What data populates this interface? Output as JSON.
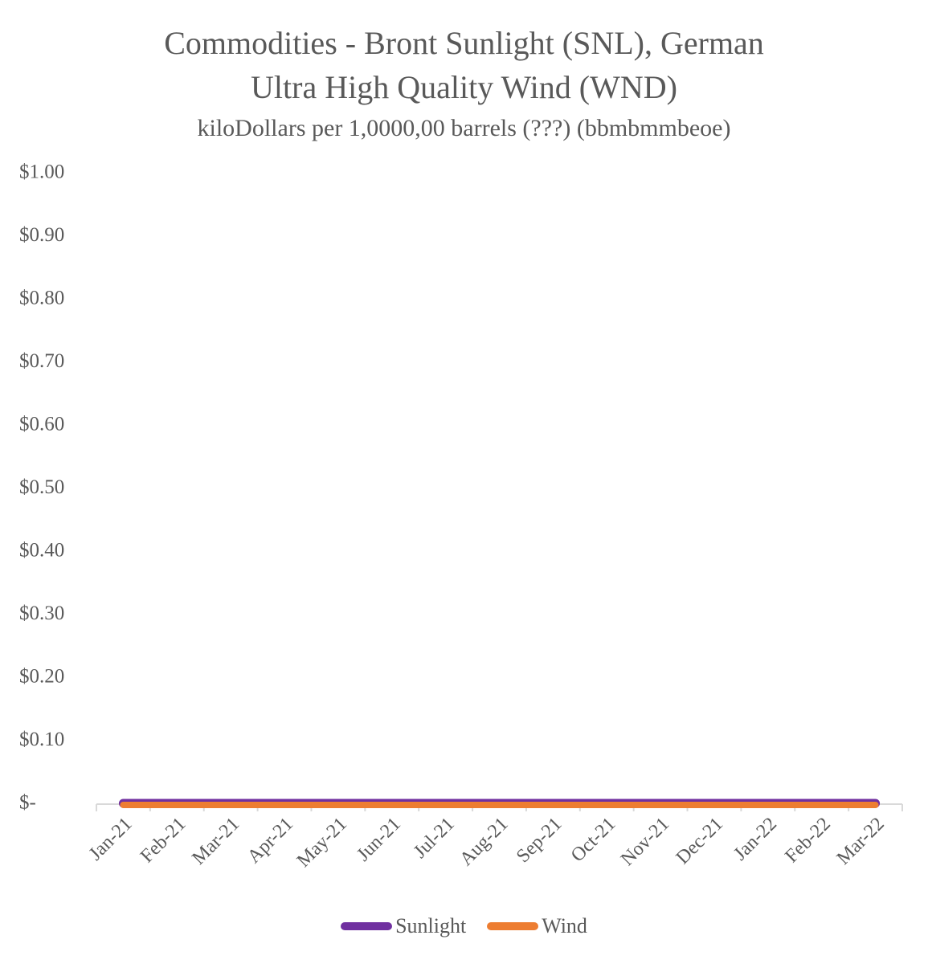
{
  "chart_data": {
    "type": "line",
    "title_lines": [
      "Commodities - Bront Sunlight (SNL), German",
      "Ultra High Quality Wind (WND)"
    ],
    "subtitle": "kiloDollars per 1,0000,00 barrels (???) (bbmbmmbeoe)",
    "categories": [
      "Jan-21",
      "Feb-21",
      "Mar-21",
      "Apr-21",
      "May-21",
      "Jun-21",
      "Jul-21",
      "Aug-21",
      "Sep-21",
      "Oct-21",
      "Nov-21",
      "Dec-21",
      "Jan-22",
      "Feb-22",
      "Mar-22"
    ],
    "y_tick_labels": [
      "$-",
      "$0.10",
      "$0.20",
      "$0.30",
      "$0.40",
      "$0.50",
      "$0.60",
      "$0.70",
      "$0.80",
      "$0.90",
      "$1.00"
    ],
    "ylim": [
      0,
      1.0
    ],
    "series": [
      {
        "name": "Sunlight",
        "color": "#7030A0",
        "values": [
          0,
          0,
          0,
          0,
          0,
          0,
          0,
          0,
          0,
          0,
          0,
          0,
          0,
          0,
          0
        ]
      },
      {
        "name": "Wind",
        "color": "#ED7D31",
        "values": [
          0,
          0,
          0,
          0,
          0,
          0,
          0,
          0,
          0,
          0,
          0,
          0,
          0,
          0,
          0
        ]
      }
    ],
    "legend_position": "bottom",
    "grid": false
  }
}
